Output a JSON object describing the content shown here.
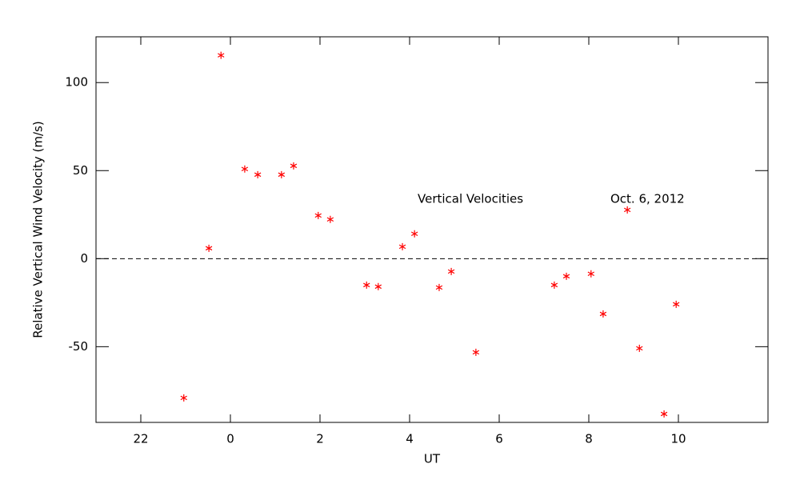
{
  "chart_data": {
    "type": "scatter",
    "xlabel": "UT",
    "ylabel": "Relative Vertical Wind Velocity (m/s)",
    "annotations": [
      "Vertical Velocities",
      "Oct. 6, 2012"
    ],
    "series": [
      {
        "color": "#ff0000",
        "x": [
          22.96,
          23.52,
          23.79,
          24.32,
          24.61,
          25.14,
          25.41,
          25.96,
          26.23,
          27.04,
          27.3,
          27.84,
          28.11,
          28.66,
          28.93,
          29.48,
          31.23,
          31.5,
          32.05,
          32.32,
          32.86,
          33.13,
          33.68,
          33.95
        ],
        "values": [
          -79.1,
          5.9,
          115.5,
          50.9,
          47.7,
          47.7,
          52.7,
          24.5,
          22.3,
          -15,
          -15.9,
          6.8,
          14.1,
          -16.4,
          -7.3,
          -53.2,
          -15,
          -10,
          -8.6,
          -31.4,
          27.7,
          -50.9,
          -88.2,
          -25.9
        ]
      }
    ],
    "xlim": [
      21,
      36
    ],
    "ylim": [
      -93,
      126
    ],
    "xticks": [
      22,
      {
        "value": 24,
        "label": "0"
      },
      {
        "value": 26,
        "label": "2"
      },
      {
        "value": 28,
        "label": "4"
      },
      {
        "value": 30,
        "label": "6"
      },
      {
        "value": 32,
        "label": "8"
      },
      {
        "value": 34,
        "label": "10"
      }
    ],
    "yticks": [
      -50,
      0,
      50,
      100
    ],
    "reference_line": 0
  }
}
